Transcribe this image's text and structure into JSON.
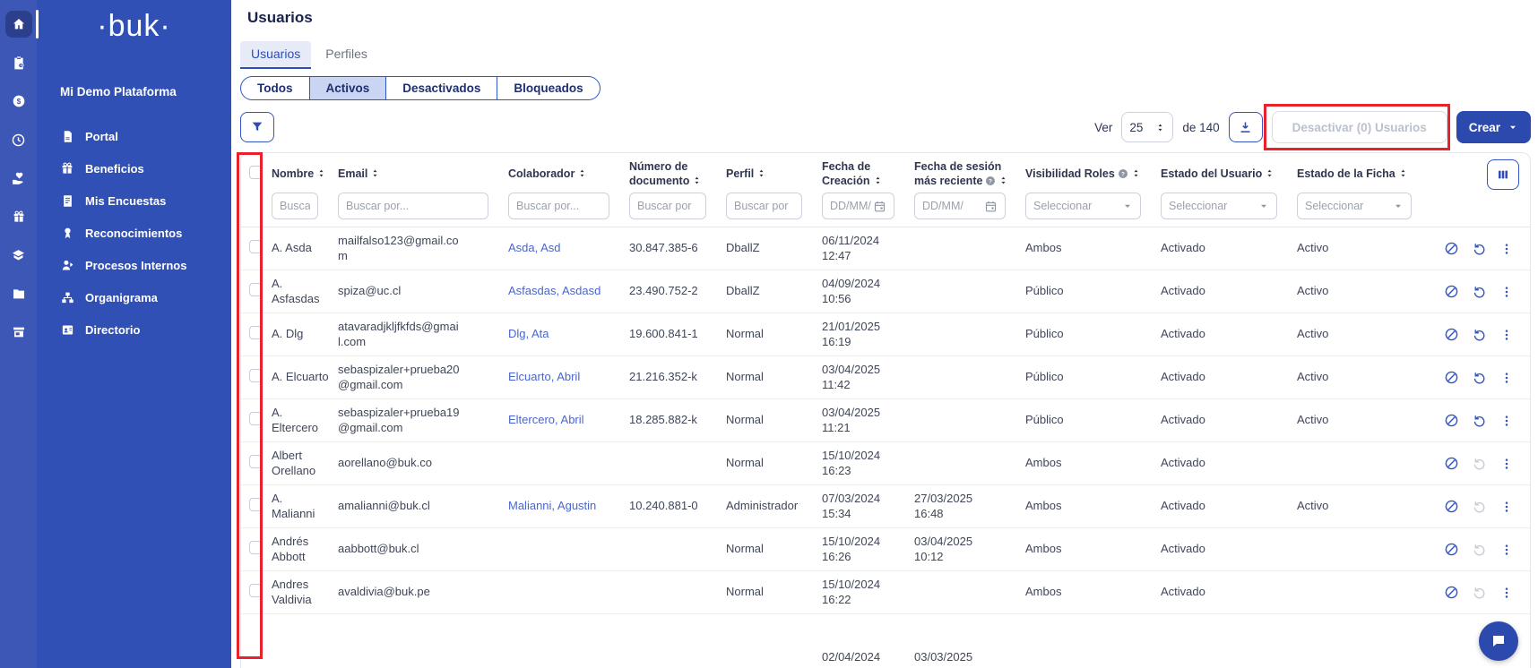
{
  "colors": {
    "accent": "#2F4DB3",
    "link": "#4A66CC",
    "annotation_red": "#E8212B"
  },
  "page": {
    "title": "Usuarios"
  },
  "sidebar": {
    "logo": "·buk·",
    "workspace": "Mi Demo Plataforma",
    "rail": [
      {
        "name": "home-icon",
        "icon": "home",
        "active": true
      },
      {
        "name": "clipboard-clock-icon",
        "icon": "clipboard",
        "active": false
      },
      {
        "name": "payments-coin-icon",
        "icon": "coin",
        "active": false
      },
      {
        "name": "time-clock-icon",
        "icon": "clock",
        "active": false
      },
      {
        "name": "benefits-hand-heart-icon",
        "icon": "hand-heart",
        "active": false
      },
      {
        "name": "gift-box-icon",
        "icon": "gift",
        "active": false
      },
      {
        "name": "education-layers-icon",
        "icon": "layers",
        "active": false
      },
      {
        "name": "folder-icon",
        "icon": "folder",
        "active": false
      },
      {
        "name": "store-icon",
        "icon": "store",
        "active": false
      }
    ],
    "items": [
      {
        "label": "Portal",
        "icon": "doc"
      },
      {
        "label": "Beneficios",
        "icon": "gift"
      },
      {
        "label": "Mis Encuestas",
        "icon": "survey"
      },
      {
        "label": "Reconocimientos",
        "icon": "medal"
      },
      {
        "label": "Procesos Internos",
        "icon": "person"
      },
      {
        "label": "Organigrama",
        "icon": "orgchart"
      },
      {
        "label": "Directorio",
        "icon": "contact"
      }
    ]
  },
  "tabs": [
    {
      "label": "Usuarios",
      "active": true
    },
    {
      "label": "Perfiles",
      "active": false
    }
  ],
  "segments": [
    {
      "label": "Todos",
      "active": false
    },
    {
      "label": "Activos",
      "active": true
    },
    {
      "label": "Desactivados",
      "active": false
    },
    {
      "label": "Bloqueados",
      "active": false
    }
  ],
  "toolbar": {
    "ver_label": "Ver",
    "page_size": "25",
    "total_label": "de 140",
    "desactivar_label": "Desactivar (0) Usuarios",
    "crear_label": "Crear"
  },
  "table": {
    "columns": [
      {
        "key": "nombre",
        "label": "Nombre",
        "sortable": true,
        "info": false,
        "filter": "text",
        "placeholder": "Buscar por..."
      },
      {
        "key": "email",
        "label": "Email",
        "sortable": true,
        "info": false,
        "filter": "text",
        "placeholder": "Buscar por..."
      },
      {
        "key": "colaborador",
        "label": "Colaborador",
        "sortable": true,
        "info": false,
        "filter": "text",
        "placeholder": "Buscar por..."
      },
      {
        "key": "documento",
        "label": "Número de documento",
        "sortable": true,
        "info": false,
        "filter": "text",
        "placeholder": "Buscar por"
      },
      {
        "key": "perfil",
        "label": "Perfil",
        "sortable": true,
        "info": false,
        "filter": "text",
        "placeholder": "Buscar por"
      },
      {
        "key": "creacion",
        "label": "Fecha de Creación",
        "sortable": true,
        "info": false,
        "filter": "date",
        "placeholder": "DD/MM/"
      },
      {
        "key": "sesion",
        "label": "Fecha de sesión más reciente",
        "sortable": true,
        "info": true,
        "filter": "date",
        "placeholder": "DD/MM/"
      },
      {
        "key": "visibilidad",
        "label": "Visibilidad Roles",
        "sortable": true,
        "info": true,
        "filter": "select",
        "placeholder": "Seleccionar"
      },
      {
        "key": "estado_usuario",
        "label": "Estado del Usuario",
        "sortable": true,
        "info": false,
        "filter": "select",
        "placeholder": "Seleccionar"
      },
      {
        "key": "estado_ficha",
        "label": "Estado de la Ficha",
        "sortable": true,
        "info": false,
        "filter": "select",
        "placeholder": "Seleccionar"
      }
    ],
    "rows": [
      {
        "nombre": "A. Asda",
        "email": "mailfalso123@gmail.com",
        "colaborador": "Asda, Asd",
        "documento": "30.847.385-6",
        "perfil": "DballZ",
        "creacion": "06/11/2024\n12:47",
        "sesion": "",
        "visibilidad": "Ambos",
        "estado_usuario": "Activado",
        "estado_ficha": "Activo",
        "restore_enabled": true
      },
      {
        "nombre": "A. Asfasdas",
        "email": "spiza@uc.cl",
        "colaborador": "Asfasdas, Asdasd",
        "documento": "23.490.752-2",
        "perfil": "DballZ",
        "creacion": "04/09/2024\n10:56",
        "sesion": "",
        "visibilidad": "Público",
        "estado_usuario": "Activado",
        "estado_ficha": "Activo",
        "restore_enabled": true
      },
      {
        "nombre": "A. Dlg",
        "email": "atavaradjkljfkfds@gmail.com",
        "colaborador": "Dlg, Ata",
        "documento": "19.600.841-1",
        "perfil": "Normal",
        "creacion": "21/01/2025\n16:19",
        "sesion": "",
        "visibilidad": "Público",
        "estado_usuario": "Activado",
        "estado_ficha": "Activo",
        "restore_enabled": true
      },
      {
        "nombre": "A. Elcuarto",
        "email": "sebaspizaler+prueba20@gmail.com",
        "colaborador": "Elcuarto, Abril",
        "documento": "21.216.352-k",
        "perfil": "Normal",
        "creacion": "03/04/2025\n11:42",
        "sesion": "",
        "visibilidad": "Público",
        "estado_usuario": "Activado",
        "estado_ficha": "Activo",
        "restore_enabled": true
      },
      {
        "nombre": "A. Eltercero",
        "email": "sebaspizaler+prueba19@gmail.com",
        "colaborador": "Eltercero, Abril",
        "documento": "18.285.882-k",
        "perfil": "Normal",
        "creacion": "03/04/2025\n11:21",
        "sesion": "",
        "visibilidad": "Público",
        "estado_usuario": "Activado",
        "estado_ficha": "Activo",
        "restore_enabled": true
      },
      {
        "nombre": "Albert Orellano",
        "email": "aorellano@buk.co",
        "colaborador": "",
        "documento": "",
        "perfil": "Normal",
        "creacion": "15/10/2024\n16:23",
        "sesion": "",
        "visibilidad": "Ambos",
        "estado_usuario": "Activado",
        "estado_ficha": "",
        "restore_enabled": false
      },
      {
        "nombre": "A. Malianni",
        "email": "amalianni@buk.cl",
        "colaborador": "Malianni, Agustin",
        "documento": "10.240.881-0",
        "perfil": "Administrador",
        "creacion": "07/03/2024\n15:34",
        "sesion": "27/03/2025\n16:48",
        "visibilidad": "Ambos",
        "estado_usuario": "Activado",
        "estado_ficha": "Activo",
        "restore_enabled": false
      },
      {
        "nombre": "Andrés Abbott",
        "email": "aabbott@buk.cl",
        "colaborador": "",
        "documento": "",
        "perfil": "Normal",
        "creacion": "15/10/2024\n16:26",
        "sesion": "03/04/2025\n10:12",
        "visibilidad": "Ambos",
        "estado_usuario": "Activado",
        "estado_ficha": "",
        "restore_enabled": false
      },
      {
        "nombre": "Andres Valdivia",
        "email": "avaldivia@buk.pe",
        "colaborador": "",
        "documento": "",
        "perfil": "Normal",
        "creacion": "15/10/2024\n16:22",
        "sesion": "",
        "visibilidad": "Ambos",
        "estado_usuario": "Activado",
        "estado_ficha": "",
        "restore_enabled": false
      }
    ],
    "partial_row": {
      "creacion": "02/04/2024",
      "sesion": "03/03/2025"
    }
  },
  "annotations": [
    {
      "target": "checkbox-column",
      "color": "#E8212B"
    },
    {
      "target": "desactivar-button",
      "color": "#E8212B"
    }
  ]
}
